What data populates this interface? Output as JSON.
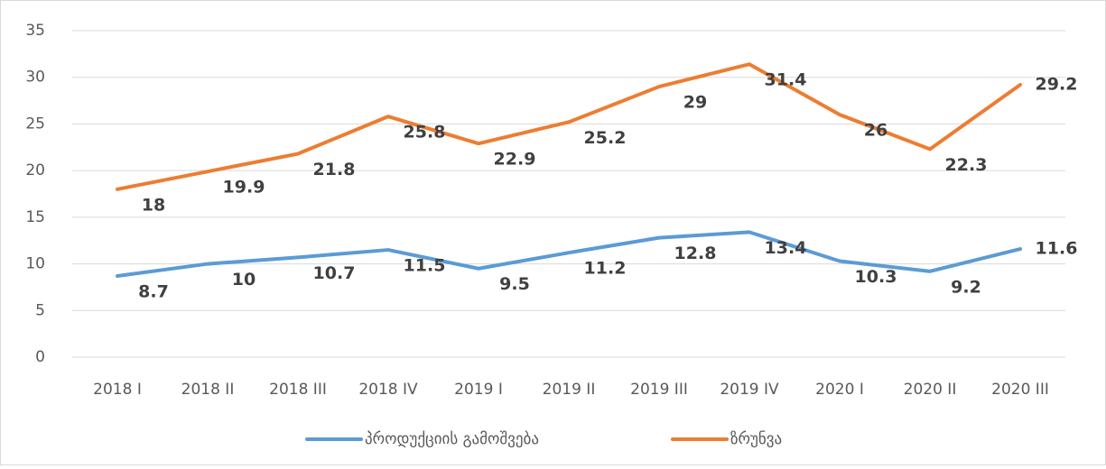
{
  "chart_data": {
    "type": "line",
    "categories": [
      "2018 I",
      "2018 II",
      "2018 III",
      "2018 IV",
      "2019 I",
      "2019 II",
      "2019 III",
      "2019 IV",
      "2020 I",
      "2020 II",
      "2020 III"
    ],
    "series": [
      {
        "name": "პროდუქციის გამოშვება",
        "color": "#5b9bd5",
        "values": [
          8.7,
          10,
          10.7,
          11.5,
          9.5,
          11.2,
          12.8,
          13.4,
          10.3,
          9.2,
          11.6
        ]
      },
      {
        "name": "ზრუნვა",
        "color": "#ed7d31",
        "values": [
          18,
          19.9,
          21.8,
          25.8,
          22.9,
          25.2,
          29,
          31.4,
          26,
          22.3,
          29.2
        ]
      }
    ],
    "ylim": [
      0,
      35
    ],
    "yticks": [
      0,
      5,
      10,
      15,
      20,
      25,
      30,
      35
    ],
    "grid": true,
    "legend": "bottom"
  }
}
